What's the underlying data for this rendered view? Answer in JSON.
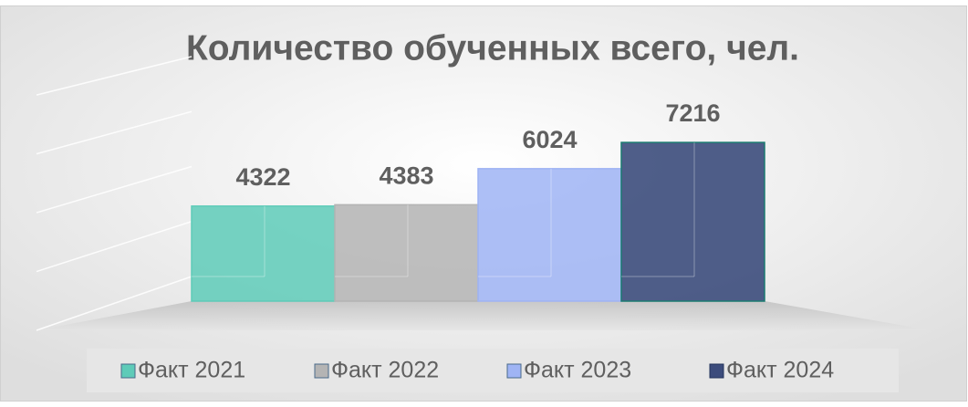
{
  "chart_data": {
    "type": "bar3d",
    "title": "Количество обученных всего, чел.",
    "series": [
      {
        "name": "Факт 2021",
        "color": "#5ecbb8",
        "values": [
          4322
        ]
      },
      {
        "name": "Факт 2022",
        "color": "#b4b4b4",
        "values": [
          4383
        ]
      },
      {
        "name": "Факт 2023",
        "color": "#9fb4f4",
        "values": [
          6024
        ]
      },
      {
        "name": "Факт 2024",
        "color": "#3c4c7c",
        "values": [
          7216
        ]
      }
    ],
    "ylim": [
      0,
      10000
    ],
    "yticks": [
      0,
      2500,
      5000,
      7500,
      10000
    ],
    "grid": true,
    "legend": "bottom"
  }
}
